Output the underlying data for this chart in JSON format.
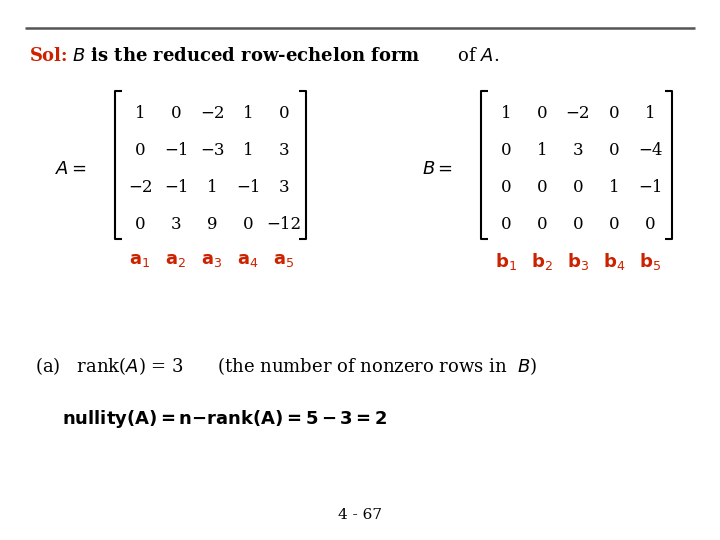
{
  "background_color": "#ffffff",
  "top_line_color": "#333333",
  "sol_color": "#cc2200",
  "text_color": "#1a1a1a",
  "red_color": "#cc2200",
  "matrix_A": [
    [
      "1",
      "0",
      "−2",
      "1",
      "0"
    ],
    [
      "0",
      "−1",
      "−3",
      "1",
      "3"
    ],
    [
      "−2",
      "−1",
      "1",
      "−1",
      "3"
    ],
    [
      "0",
      "3",
      "9",
      "0",
      "−12"
    ]
  ],
  "matrix_B": [
    [
      "1",
      "0",
      "−2",
      "0",
      "1"
    ],
    [
      "0",
      "1",
      "3",
      "0",
      "−4"
    ],
    [
      "0",
      "0",
      "0",
      "1",
      "−1"
    ],
    [
      "0",
      "0",
      "0",
      "0",
      "0"
    ]
  ],
  "col_labels_A": [
    "$\\mathbf{a}_1$",
    "$\\mathbf{a}_2$",
    "$\\mathbf{a}_3$",
    "$\\mathbf{a}_4$",
    "$\\mathbf{a}_5$"
  ],
  "col_labels_B": [
    "$\\mathbf{b}_1$",
    "$\\mathbf{b}_2$",
    "$\\mathbf{b}_3$",
    "$\\mathbf{b}_4$",
    "$\\mathbf{b}_5$"
  ],
  "page_number": "4 - 67"
}
